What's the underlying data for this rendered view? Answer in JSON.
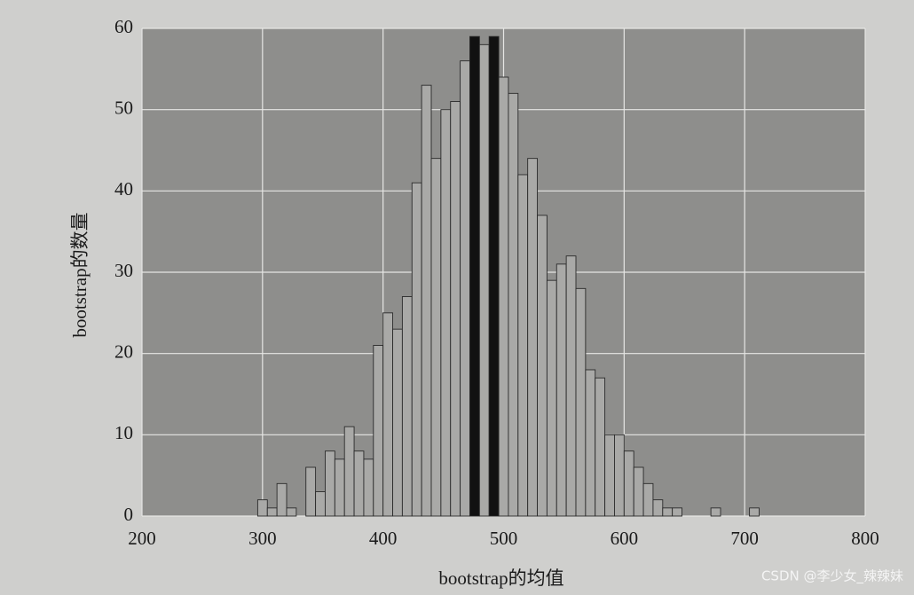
{
  "chart_data": {
    "type": "histogram",
    "x_label": "bootstrap的均值",
    "y_label": "bootstrap的数量",
    "bins": [
      296,
      304,
      312,
      320,
      328,
      336,
      344,
      352,
      360,
      368,
      376,
      384,
      392,
      400,
      408,
      416,
      424,
      432,
      440,
      448,
      456,
      464,
      472,
      480,
      488,
      496,
      504,
      512,
      520,
      528,
      536,
      544,
      552,
      560,
      568,
      576,
      584,
      592,
      600,
      608,
      616,
      624,
      632,
      640,
      648,
      656,
      664,
      672,
      680,
      688,
      696,
      704,
      712
    ],
    "counts": [
      2,
      1,
      4,
      1,
      0,
      6,
      3,
      8,
      7,
      11,
      8,
      7,
      21,
      25,
      23,
      27,
      41,
      53,
      44,
      50,
      51,
      56,
      59,
      58,
      59,
      54,
      52,
      42,
      44,
      37,
      29,
      31,
      32,
      28,
      18,
      17,
      10,
      10,
      8,
      6,
      4,
      2,
      1,
      1,
      0,
      0,
      0,
      1,
      0,
      0,
      0,
      1
    ],
    "color": "#a9a9a7",
    "highlight_color": "#111111",
    "highlight": [
      22,
      24
    ],
    "xlim": [
      200,
      800
    ],
    "xticks": [
      200,
      300,
      400,
      500,
      600,
      700,
      800
    ],
    "ylim": [
      0,
      60
    ],
    "yticks": [
      0,
      10,
      20,
      30,
      40,
      50,
      60
    ],
    "grid": true,
    "watermark": "CSDN @李少女_辣辣妹"
  }
}
